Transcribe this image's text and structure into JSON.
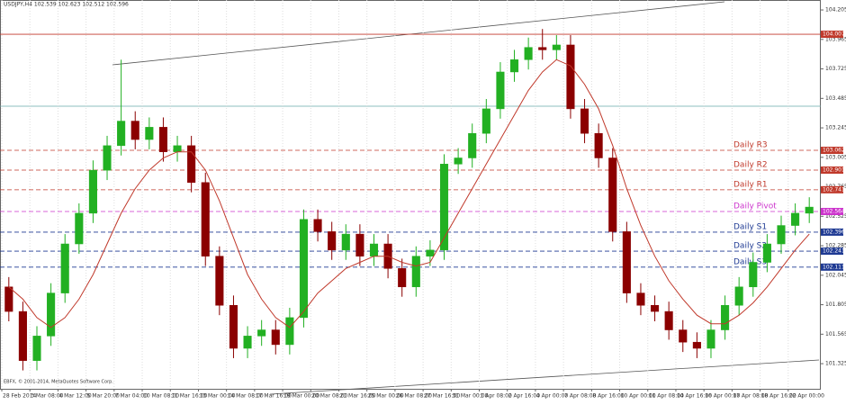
{
  "chart_data": {
    "type": "candlestick",
    "title": "USDJPY,H4 102.539 102.623 102.512 102.596",
    "footer": "EBFX, © 2001-2014, MetaQuotes Software Corp.",
    "categories": [
      "28 Feb 2014",
      null,
      "3 Mar 08:00",
      null,
      "4 Mar 12:00",
      null,
      "5 Mar 20:00",
      null,
      "7 Mar 04:00",
      null,
      "10 Mar 08:00",
      null,
      "11 Mar 16:00",
      null,
      "13 Mar 00:00",
      null,
      "14 Mar 08:00",
      null,
      "17 Mar 16:00",
      null,
      "19 Mar 00:00",
      null,
      "20 Mar 08:00",
      null,
      "21 Mar 16:00",
      null,
      "25 Mar 00:00",
      null,
      "26 Mar 08:00",
      null,
      "27 Mar 16:00",
      null,
      "31 Mar 00:00",
      null,
      "1 Apr 08:00",
      null,
      "2 Apr 16:00",
      null,
      "4 Apr 00:00",
      null,
      "7 Apr 08:00",
      null,
      "8 Apr 16:00",
      null,
      "10 Apr 00:00",
      null,
      "11 Apr 08:00",
      null,
      "14 Apr 16:00",
      null,
      "16 Apr 00:00",
      null,
      "17 Apr 08:00",
      null,
      "18 Apr 16:00",
      null,
      "22 Apr 00:00",
      null
    ],
    "open": [
      101.95,
      101.75,
      101.35,
      101.55,
      101.9,
      102.3,
      102.55,
      102.9,
      103.1,
      103.3,
      103.15,
      103.25,
      103.05,
      103.1,
      102.8,
      102.2,
      101.8,
      101.45,
      101.55,
      101.6,
      101.48,
      101.7,
      102.5,
      102.4,
      102.25,
      102.38,
      102.2,
      102.3,
      102.1,
      101.95,
      102.2,
      102.25,
      102.95,
      103.0,
      103.2,
      103.4,
      103.7,
      103.8,
      103.9,
      103.88,
      103.92,
      103.4,
      103.2,
      103.0,
      102.4,
      101.9,
      101.8,
      101.75,
      101.6,
      101.5,
      101.45,
      101.6,
      101.8,
      101.95,
      102.15,
      102.3,
      102.45,
      102.55
    ],
    "high": [
      102.03,
      101.83,
      101.63,
      101.98,
      102.38,
      102.63,
      102.98,
      103.18,
      103.8,
      103.38,
      103.33,
      103.33,
      103.18,
      103.18,
      102.88,
      102.28,
      101.88,
      101.63,
      101.68,
      101.68,
      101.78,
      102.58,
      102.58,
      102.48,
      102.46,
      102.46,
      102.38,
      102.38,
      102.18,
      102.28,
      102.33,
      103.03,
      103.08,
      103.28,
      103.48,
      103.78,
      103.88,
      103.98,
      104.05,
      104.0,
      104.0,
      103.48,
      103.28,
      103.08,
      102.48,
      101.98,
      101.88,
      101.83,
      101.68,
      101.58,
      101.68,
      101.88,
      102.03,
      102.23,
      102.38,
      102.53,
      102.63,
      102.68
    ],
    "low": [
      101.67,
      101.27,
      101.27,
      101.47,
      101.82,
      102.22,
      102.47,
      102.82,
      103.02,
      103.07,
      103.07,
      102.97,
      102.97,
      102.72,
      102.12,
      101.72,
      101.37,
      101.37,
      101.47,
      101.4,
      101.4,
      101.62,
      102.32,
      102.17,
      102.17,
      102.12,
      102.12,
      102.02,
      101.87,
      101.87,
      102.12,
      102.17,
      102.87,
      102.92,
      103.12,
      103.32,
      103.62,
      103.72,
      103.8,
      103.8,
      103.32,
      103.12,
      102.92,
      102.32,
      101.82,
      101.72,
      101.67,
      101.52,
      101.42,
      101.37,
      101.37,
      101.52,
      101.72,
      101.87,
      102.07,
      102.22,
      102.37,
      102.47
    ],
    "close": [
      101.75,
      101.35,
      101.55,
      101.9,
      102.3,
      102.55,
      102.9,
      103.1,
      103.3,
      103.15,
      103.25,
      103.05,
      103.1,
      102.8,
      102.2,
      101.8,
      101.45,
      101.55,
      101.6,
      101.48,
      101.7,
      102.5,
      102.4,
      102.25,
      102.38,
      102.2,
      102.3,
      102.1,
      101.95,
      102.2,
      102.25,
      102.95,
      103.0,
      103.2,
      103.4,
      103.7,
      103.8,
      103.9,
      103.88,
      103.92,
      103.4,
      103.2,
      103.0,
      102.4,
      101.9,
      101.8,
      101.75,
      101.6,
      101.5,
      101.45,
      101.6,
      101.8,
      101.95,
      102.15,
      102.3,
      102.45,
      102.55,
      102.6
    ],
    "up_color": "#22b022",
    "down_color": "#8b0000",
    "ma": {
      "color": "#c0392b",
      "values": [
        101.95,
        101.85,
        101.7,
        101.62,
        101.7,
        101.85,
        102.05,
        102.3,
        102.55,
        102.75,
        102.9,
        103.0,
        103.05,
        103.05,
        102.9,
        102.65,
        102.35,
        102.05,
        101.85,
        101.7,
        101.62,
        101.75,
        101.9,
        102.0,
        102.1,
        102.15,
        102.2,
        102.2,
        102.15,
        102.12,
        102.15,
        102.35,
        102.55,
        102.75,
        102.95,
        103.15,
        103.35,
        103.55,
        103.7,
        103.8,
        103.75,
        103.6,
        103.4,
        103.1,
        102.75,
        102.45,
        102.2,
        102.0,
        101.85,
        101.72,
        101.65,
        101.65,
        101.72,
        101.82,
        101.95,
        102.1,
        102.25,
        102.38
      ]
    },
    "levels": [
      {
        "value": 104.007,
        "color": "#c0392b"
      },
      {
        "name": "Daily R3",
        "value": 103.062,
        "color": "#c0392b"
      },
      {
        "name": "Daily R2",
        "value": 102.901,
        "color": "#c0392b"
      },
      {
        "name": "Daily R1",
        "value": 102.741,
        "color": "#c0392b"
      },
      {
        "name": "Daily Pivot",
        "value": 102.564,
        "color": "#cc33cc"
      },
      {
        "name": "Daily S1",
        "value": 102.396,
        "color": "#1f3a93"
      },
      {
        "name": "Daily S2",
        "value": 102.241,
        "color": "#1f3a93"
      },
      {
        "name": "Daily S3",
        "value": 102.111,
        "color": "#1f3a93"
      }
    ],
    "ylim": [
      101.135,
      104.286
    ],
    "yticks": [
      104.205,
      103.965,
      103.725,
      103.485,
      103.245,
      103.005,
      102.765,
      102.525,
      102.285,
      102.045,
      101.805,
      101.565,
      101.325
    ],
    "grid": true
  }
}
